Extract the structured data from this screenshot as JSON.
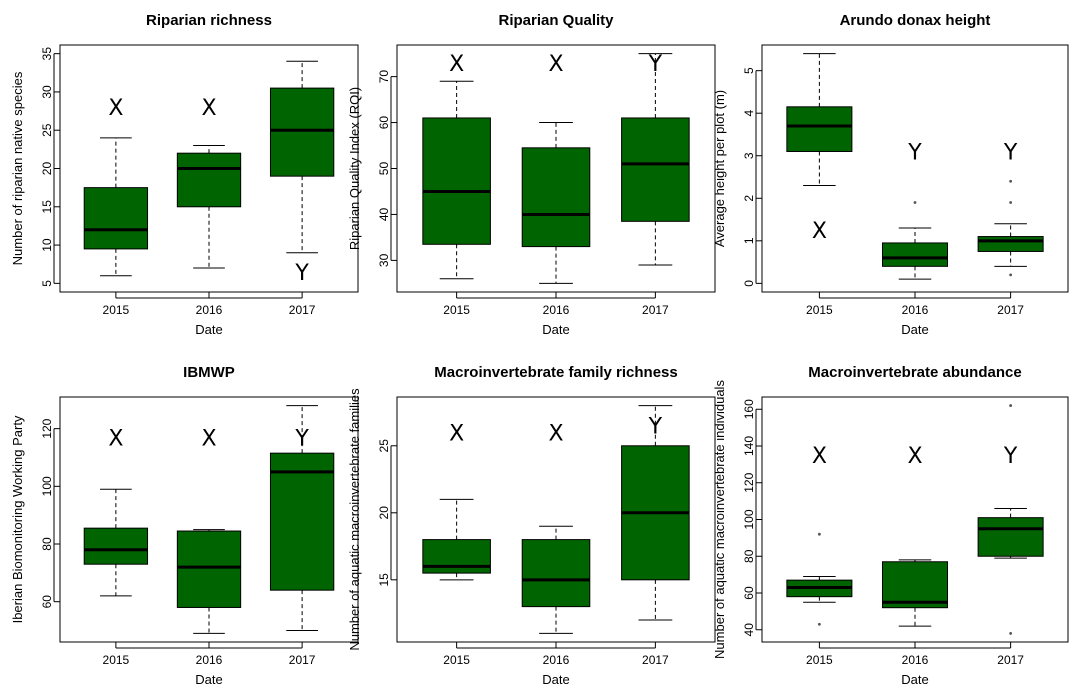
{
  "chart_data": [
    {
      "type": "boxplot",
      "title": "Riparian richness",
      "xlabel": "Date",
      "ylabel": "Number of riparian native species",
      "categories": [
        "2015",
        "2016",
        "2017"
      ],
      "ylim": [
        5,
        35
      ],
      "yticks": [
        5,
        10,
        15,
        20,
        25,
        30,
        35
      ],
      "boxes": [
        {
          "min": 6,
          "q1": 9.5,
          "median": 12,
          "q3": 17.5,
          "max": 24,
          "outliers": []
        },
        {
          "min": 7,
          "q1": 15,
          "median": 20,
          "q3": 22,
          "max": 23,
          "outliers": []
        },
        {
          "min": 9,
          "q1": 19,
          "median": 25,
          "q3": 30.5,
          "max": 34,
          "outliers": []
        }
      ],
      "labels": [
        {
          "category": "2015",
          "text": "X",
          "y": 28
        },
        {
          "category": "2016",
          "text": "X",
          "y": 28
        },
        {
          "category": "2017",
          "text": "Y",
          "y": 6.5
        }
      ]
    },
    {
      "type": "boxplot",
      "title": "Riparian Quality",
      "xlabel": "Date",
      "ylabel": "Riparian Quality Index (RQI)",
      "categories": [
        "2015",
        "2016",
        "2017"
      ],
      "ylim": [
        25,
        75
      ],
      "yticks": [
        30,
        40,
        50,
        60,
        70
      ],
      "boxes": [
        {
          "min": 26,
          "q1": 33.5,
          "median": 45,
          "q3": 61,
          "max": 69,
          "outliers": []
        },
        {
          "min": 25,
          "q1": 33,
          "median": 40,
          "q3": 54.5,
          "max": 60,
          "outliers": []
        },
        {
          "min": 29,
          "q1": 38.5,
          "median": 51,
          "q3": 61,
          "max": 75,
          "outliers": []
        }
      ],
      "labels": [
        {
          "category": "2015",
          "text": "X",
          "y": 73
        },
        {
          "category": "2016",
          "text": "X",
          "y": 73
        },
        {
          "category": "2017",
          "text": "Y",
          "y": 73
        }
      ]
    },
    {
      "type": "boxplot",
      "title": "Arundo donax height",
      "xlabel": "Date",
      "ylabel": "Average height per plot (m)",
      "categories": [
        "2015",
        "2016",
        "2017"
      ],
      "ylim": [
        0,
        5.4
      ],
      "yticks": [
        0,
        1,
        2,
        3,
        4,
        5
      ],
      "boxes": [
        {
          "min": 2.3,
          "q1": 3.1,
          "median": 3.7,
          "q3": 4.15,
          "max": 5.4,
          "outliers": []
        },
        {
          "min": 0.1,
          "q1": 0.4,
          "median": 0.6,
          "q3": 0.95,
          "max": 1.3,
          "outliers": [
            1.9
          ]
        },
        {
          "min": 0.4,
          "q1": 0.75,
          "median": 1.0,
          "q3": 1.1,
          "max": 1.4,
          "outliers": [
            0.2,
            1.9,
            2.4
          ]
        }
      ],
      "labels": [
        {
          "category": "2015",
          "text": "X",
          "y": 1.25
        },
        {
          "category": "2016",
          "text": "Y",
          "y": 3.1
        },
        {
          "category": "2017",
          "text": "Y",
          "y": 3.1
        }
      ]
    },
    {
      "type": "boxplot",
      "title": "IBMWP",
      "xlabel": "Date",
      "ylabel": "Iberian Biomonitoring Working Party",
      "categories": [
        "2015",
        "2016",
        "2017"
      ],
      "ylim": [
        49,
        128
      ],
      "yticks": [
        60,
        80,
        100,
        120
      ],
      "boxes": [
        {
          "min": 62,
          "q1": 73,
          "median": 78,
          "q3": 85.5,
          "max": 99,
          "outliers": []
        },
        {
          "min": 49,
          "q1": 58,
          "median": 72,
          "q3": 84.5,
          "max": 85,
          "outliers": []
        },
        {
          "min": 50,
          "q1": 64,
          "median": 105,
          "q3": 111.5,
          "max": 128,
          "outliers": []
        }
      ],
      "labels": [
        {
          "category": "2015",
          "text": "X",
          "y": 117
        },
        {
          "category": "2016",
          "text": "X",
          "y": 117
        },
        {
          "category": "2017",
          "text": "Y",
          "y": 117
        }
      ]
    },
    {
      "type": "boxplot",
      "title": "Macroinvertebrate family richness",
      "xlabel": "Date",
      "ylabel": "Number of aquatic macroinvertebrate families",
      "categories": [
        "2015",
        "2016",
        "2017"
      ],
      "ylim": [
        11,
        28
      ],
      "yticks": [
        15,
        20,
        25
      ],
      "boxes": [
        {
          "min": 15,
          "q1": 15.5,
          "median": 16,
          "q3": 18,
          "max": 21,
          "outliers": []
        },
        {
          "min": 11,
          "q1": 13,
          "median": 15,
          "q3": 18,
          "max": 19,
          "outliers": []
        },
        {
          "min": 12,
          "q1": 15,
          "median": 20,
          "q3": 25,
          "max": 28,
          "outliers": []
        }
      ],
      "labels": [
        {
          "category": "2015",
          "text": "X",
          "y": 26
        },
        {
          "category": "2016",
          "text": "X",
          "y": 26
        },
        {
          "category": "2017",
          "text": "Y",
          "y": 26.5
        }
      ]
    },
    {
      "type": "boxplot",
      "title": "Macroinvertebrate abundance",
      "xlabel": "Date",
      "ylabel": "Number of aquatic macroinvertebrate individuals",
      "categories": [
        "2015",
        "2016",
        "2017"
      ],
      "ylim": [
        38,
        162
      ],
      "yticks": [
        40,
        60,
        80,
        100,
        120,
        140,
        160
      ],
      "boxes": [
        {
          "min": 55,
          "q1": 58,
          "median": 63,
          "q3": 67,
          "max": 69,
          "outliers": [
            43,
            92
          ]
        },
        {
          "min": 42,
          "q1": 52,
          "median": 55,
          "q3": 77,
          "max": 78,
          "outliers": []
        },
        {
          "min": 79,
          "q1": 80,
          "median": 95,
          "q3": 101,
          "max": 106,
          "outliers": [
            38,
            162
          ]
        }
      ],
      "labels": [
        {
          "category": "2015",
          "text": "X",
          "y": 135
        },
        {
          "category": "2016",
          "text": "X",
          "y": 135
        },
        {
          "category": "2017",
          "text": "Y",
          "y": 135
        }
      ]
    }
  ],
  "colors": {
    "box_fill": "#006400",
    "stroke": "#000000"
  }
}
